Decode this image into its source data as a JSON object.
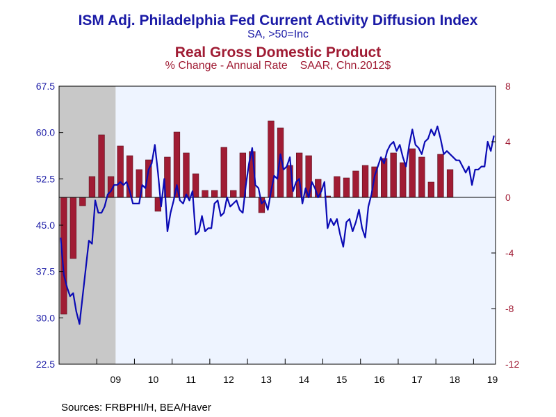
{
  "header": {
    "title_left": "ISM Adj. Philadelphia Fed Current Activity Diffusion Index",
    "subtitle_left": "SA, >50=Inc",
    "title_right": "Real Gross Domestic Product",
    "subtitle_right": "% Change - Annual Rate    SAAR, Chn.2012$"
  },
  "footer": {
    "source": "Sources:  FRBPHI/H, BEA/Haver"
  },
  "colors": {
    "line": "#0a0ab4",
    "bar": "#a01c34",
    "plot_bg": "#eef4ff",
    "recession": "#c8c8c8",
    "left_axis": "#1a1aa6",
    "right_axis": "#a01c34"
  },
  "chart_data": {
    "type": "bar+line",
    "x_tick_labels": [
      "09",
      "10",
      "11",
      "12",
      "13",
      "14",
      "15",
      "16",
      "17",
      "18",
      "19"
    ],
    "x_range": [
      2008.0,
      2019.5833
    ],
    "recession": [
      2008.0,
      2009.5
    ],
    "left_axis": {
      "ticks": [
        22.5,
        30.0,
        37.5,
        45.0,
        52.5,
        60.0,
        67.5
      ],
      "labels": [
        "22.5",
        "30.0",
        "37.5",
        "45.0",
        "52.5",
        "60.0",
        "67.5"
      ],
      "range": [
        22.5,
        67.5
      ]
    },
    "right_axis": {
      "ticks": [
        -12,
        -8,
        -4,
        0,
        4,
        8
      ],
      "labels": [
        "-12",
        "-8",
        "-4",
        "0",
        "4",
        "8"
      ],
      "range": [
        -12,
        8
      ]
    },
    "series": [
      {
        "name": "Real Gross Domestic Product",
        "type": "bar",
        "axis": "right",
        "x_start": 2008.0,
        "frequency": "quarterly",
        "values": [
          -8.4,
          -4.4,
          -0.6,
          1.5,
          4.5,
          1.5,
          3.7,
          3.0,
          2.0,
          2.7,
          -1.0,
          2.9,
          4.7,
          3.2,
          1.7,
          0.5,
          0.5,
          3.6,
          0.5,
          3.2,
          3.3,
          -1.1,
          5.5,
          5.0,
          2.3,
          3.2,
          3.0,
          1.3,
          0.1,
          1.5,
          1.4,
          1.9,
          2.3,
          2.2,
          2.8,
          3.2,
          2.5,
          3.5,
          2.9,
          1.1,
          3.1,
          2.0
        ]
      },
      {
        "name": "ISM Adj. Philadelphia Fed Current Activity Diffusion Index",
        "type": "line",
        "axis": "left",
        "x_start": 2008.0,
        "frequency": "monthly",
        "values": [
          43.0,
          37.0,
          35.0,
          33.5,
          34.0,
          31.0,
          29.0,
          33.5,
          38.0,
          42.5,
          42.0,
          49.0,
          47.0,
          47.0,
          48.0,
          50.0,
          50.5,
          51.5,
          51.5,
          52.0,
          51.5,
          52.0,
          50.5,
          48.5,
          48.5,
          48.5,
          51.5,
          51.0,
          54.0,
          55.0,
          58.0,
          53.5,
          48.0,
          52.5,
          44.0,
          47.0,
          49.0,
          51.5,
          49.0,
          48.5,
          50.0,
          49.0,
          50.5,
          43.5,
          44.0,
          46.5,
          44.0,
          44.5,
          44.5,
          48.5,
          49.0,
          46.5,
          47.0,
          49.5,
          48.0,
          48.5,
          49.0,
          47.5,
          47.0,
          51.5,
          55.0,
          57.5,
          51.5,
          51.0,
          48.5,
          49.0,
          47.5,
          50.5,
          53.0,
          52.5,
          56.5,
          54.0,
          54.5,
          56.0,
          50.5,
          52.0,
          52.5,
          48.5,
          51.0,
          49.5,
          52.0,
          51.0,
          49.5,
          50.5,
          52.0,
          44.5,
          46.0,
          45.0,
          46.0,
          43.5,
          41.5,
          45.5,
          46.0,
          44.0,
          45.5,
          47.5,
          44.5,
          43.0,
          48.0,
          50.0,
          53.0,
          54.5,
          56.0,
          55.0,
          57.0,
          58.0,
          58.5,
          57.0,
          58.0,
          56.0,
          54.5,
          58.0,
          60.5,
          58.0,
          57.5,
          56.5,
          58.5,
          59.0,
          60.5,
          59.5,
          61.0,
          59.0,
          56.5,
          57.0,
          56.5,
          56.0,
          55.5,
          55.5,
          54.5,
          53.5,
          54.5,
          51.5,
          54.0,
          54.0,
          54.5,
          54.5,
          58.5,
          57.0,
          59.5
        ]
      }
    ]
  }
}
